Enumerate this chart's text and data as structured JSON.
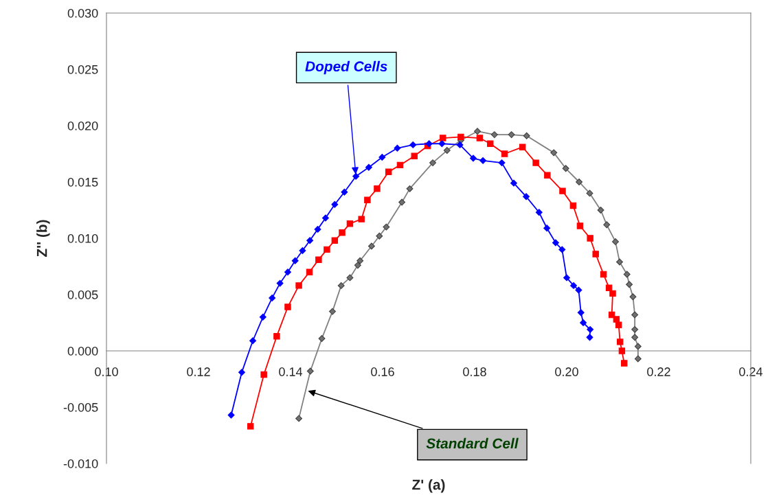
{
  "chart_data": {
    "type": "line",
    "xlabel": "Z' (a)",
    "ylabel": "Z'' (b)",
    "xlim": [
      0.1,
      0.24
    ],
    "ylim": [
      -0.01,
      0.03
    ],
    "xticks": [
      {
        "value": 0.1,
        "label": "0.10"
      },
      {
        "value": 0.12,
        "label": "0.12"
      },
      {
        "value": 0.14,
        "label": "0.14"
      },
      {
        "value": 0.16,
        "label": "0.16"
      },
      {
        "value": 0.18,
        "label": "0.18"
      },
      {
        "value": 0.2,
        "label": "0.20"
      },
      {
        "value": 0.22,
        "label": "0.22"
      },
      {
        "value": 0.24,
        "label": "0.24"
      }
    ],
    "yticks": [
      {
        "value": -0.01,
        "label": "-0.010"
      },
      {
        "value": -0.005,
        "label": "-0.005"
      },
      {
        "value": 0.0,
        "label": "0.000"
      },
      {
        "value": 0.005,
        "label": "0.005"
      },
      {
        "value": 0.01,
        "label": "0.010"
      },
      {
        "value": 0.015,
        "label": "0.015"
      },
      {
        "value": 0.02,
        "label": "0.020"
      },
      {
        "value": 0.025,
        "label": "0.025"
      },
      {
        "value": 0.03,
        "label": "0.030"
      }
    ],
    "grid": false,
    "line_style": "solid",
    "series": [
      {
        "color": "#0000ff",
        "marker": "diamond",
        "x": [
          0.1271,
          0.1294,
          0.1318,
          0.134,
          0.136,
          0.1377,
          0.1394,
          0.141,
          0.1426,
          0.1442,
          0.1459,
          0.1476,
          0.1496,
          0.1517,
          0.1542,
          0.157,
          0.1599,
          0.1632,
          0.1666,
          0.1701,
          0.1729,
          0.1768,
          0.1797,
          0.1818,
          0.1859,
          0.1885,
          0.1912,
          0.194,
          0.1957,
          0.1976,
          0.199,
          0.2,
          0.2015,
          0.2026,
          0.2031,
          0.2036,
          0.2051,
          0.205
        ],
        "values": [
          -0.0057,
          -0.0019,
          0.0009,
          0.003,
          0.0047,
          0.006,
          0.007,
          0.008,
          0.0089,
          0.0098,
          0.0108,
          0.0118,
          0.013,
          0.0141,
          0.0155,
          0.0163,
          0.0172,
          0.018,
          0.0183,
          0.0184,
          0.0184,
          0.0183,
          0.0171,
          0.0169,
          0.0167,
          0.0149,
          0.0137,
          0.0123,
          0.0109,
          0.0096,
          0.009,
          0.0065,
          0.0058,
          0.0054,
          0.0034,
          0.0025,
          0.0019,
          0.0012
        ]
      },
      {
        "color": "#ff0000",
        "marker": "square",
        "x": [
          0.1313,
          0.1342,
          0.137,
          0.1394,
          0.1418,
          0.1441,
          0.1461,
          0.1479,
          0.1496,
          0.1512,
          0.1529,
          0.1554,
          0.1567,
          0.1588,
          0.1613,
          0.1638,
          0.1669,
          0.1698,
          0.1731,
          0.177,
          0.1811,
          0.1834,
          0.1865,
          0.1904,
          0.1933,
          0.1958,
          0.1991,
          0.2014,
          0.2029,
          0.2051,
          0.2063,
          0.208,
          0.2092,
          0.21,
          0.2098,
          0.2108,
          0.2113,
          0.2116,
          0.212,
          0.2125
        ],
        "values": [
          -0.0067,
          -0.0021,
          0.0013,
          0.0039,
          0.0058,
          0.007,
          0.0081,
          0.009,
          0.0098,
          0.0105,
          0.0113,
          0.0117,
          0.0134,
          0.0144,
          0.0159,
          0.0165,
          0.0173,
          0.0182,
          0.0189,
          0.019,
          0.0189,
          0.0184,
          0.0175,
          0.0181,
          0.0167,
          0.0156,
          0.0142,
          0.0129,
          0.0111,
          0.01,
          0.0086,
          0.0068,
          0.0056,
          0.0051,
          0.0032,
          0.0028,
          0.0023,
          0.0008,
          0.0,
          -0.0011
        ]
      },
      {
        "color": "#808080",
        "marker": "diamond",
        "x": [
          0.1418,
          0.1443,
          0.1468,
          0.1491,
          0.151,
          0.1529,
          0.1546,
          0.1551,
          0.1576,
          0.1593,
          0.1608,
          0.1642,
          0.1659,
          0.1709,
          0.174,
          0.177,
          0.1806,
          0.1843,
          0.188,
          0.1913,
          0.1972,
          0.1998,
          0.2027,
          0.205,
          0.2074,
          0.2087,
          0.2106,
          0.2115,
          0.2131,
          0.2136,
          0.2144,
          0.2148,
          0.2148,
          0.2148,
          0.2155,
          0.2155
        ],
        "values": [
          -0.006,
          -0.0018,
          0.0011,
          0.0035,
          0.0058,
          0.0065,
          0.0076,
          0.008,
          0.0093,
          0.0102,
          0.011,
          0.0132,
          0.0144,
          0.0167,
          0.0178,
          0.0187,
          0.0195,
          0.0192,
          0.0192,
          0.0191,
          0.0176,
          0.0162,
          0.015,
          0.014,
          0.0125,
          0.0112,
          0.0097,
          0.0079,
          0.0068,
          0.0059,
          0.0048,
          0.0032,
          0.0019,
          0.0012,
          0.0004,
          -0.0007
        ]
      }
    ],
    "annotations": [
      {
        "text": "Doped Cells",
        "x": 0.1542,
        "y": 0.0155
      },
      {
        "text": "Standard Cell",
        "x": 0.1434,
        "y": -0.0035
      }
    ]
  }
}
